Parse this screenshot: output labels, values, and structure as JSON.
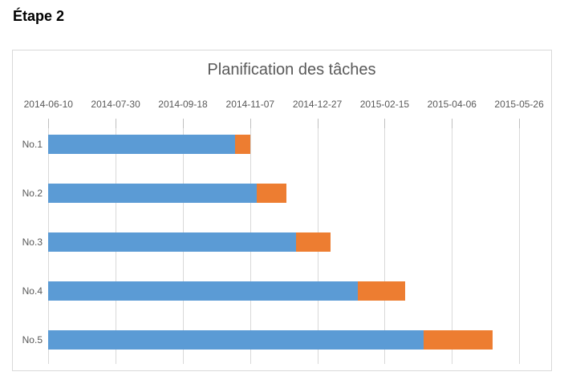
{
  "page": {
    "heading": "Étape 2"
  },
  "chart_data": {
    "type": "bar",
    "subtype": "horizontal-stacked-gantt",
    "title": "Planification des tâches",
    "categories": [
      "No.1",
      "No.2",
      "No.3",
      "No.4",
      "No.5"
    ],
    "series": [
      {
        "name": "blue-segment",
        "color": "#5B9BD5",
        "values": [
          139,
          155,
          184,
          230,
          279
        ]
      },
      {
        "name": "orange-segment",
        "color": "#ED7D31",
        "values": [
          11,
          22,
          26,
          35,
          51
        ]
      }
    ],
    "value_unit": "days-from-axis-start",
    "x_axis": {
      "position": "top",
      "tick_labels": [
        "2014-06-10",
        "2014-07-30",
        "2014-09-18",
        "2014-11-07",
        "2014-12-27",
        "2015-02-15",
        "2015-04-06",
        "2015-05-26"
      ],
      "days_per_tick": 50,
      "range_days": [
        0,
        350
      ]
    },
    "legend": "none",
    "grid": "vertical",
    "colors": {
      "axis_text": "#595959",
      "title_text": "#595959",
      "gridline": "#d9d9d9",
      "border": "#d9d9d9"
    }
  }
}
